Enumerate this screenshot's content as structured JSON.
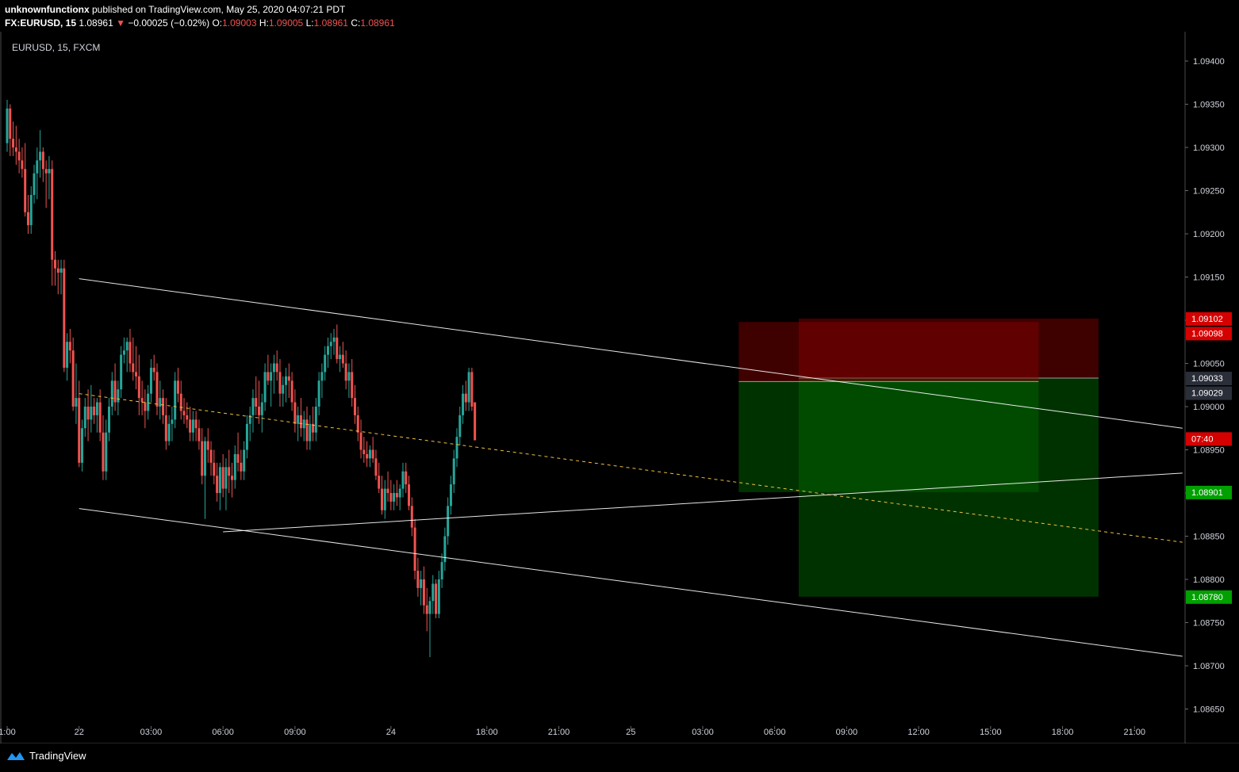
{
  "header": {
    "author": "unknownfunctionx",
    "published_text": "published on TradingView.com, May 25, 2020 04:07:21 PDT",
    "symbol": "FX:EURUSD, 15",
    "last": "1.08961",
    "change": "−0.00025 (−0.02%)",
    "open_label": "O:",
    "open": "1.09003",
    "high_label": "H:",
    "high": "1.09005",
    "low_label": "L:",
    "low": "1.08961",
    "close_label": "C:",
    "close": "1.08961"
  },
  "chart_label": "EURUSD, 15, FXCM",
  "footer": {
    "brand": "TradingView"
  },
  "colors": {
    "up": "#26a69a",
    "down": "#ef5350",
    "bg": "#000000",
    "stop_zone": "#8b0000",
    "target_zone": "#006400",
    "midline": "#f0c040",
    "trendline": "#ffffff"
  },
  "chart_data": {
    "type": "candlestick",
    "title": "EURUSD, 15, FXCM",
    "ylim": [
      1.0864,
      1.0942
    ],
    "y_ticks": [
      "1.09400",
      "1.09350",
      "1.09300",
      "1.09250",
      "1.09200",
      "1.09150",
      "1.09100",
      "1.09050",
      "1.09000",
      "1.08950",
      "1.08900",
      "1.08850",
      "1.08800",
      "1.08750",
      "1.08700",
      "1.08650"
    ],
    "x_ticks": [
      {
        "label": "1:00",
        "idx": 0
      },
      {
        "label": "22",
        "idx": 24
      },
      {
        "label": "03:00",
        "idx": 48
      },
      {
        "label": "06:00",
        "idx": 72
      },
      {
        "label": "09:00",
        "idx": 96
      },
      {
        "label": "24",
        "idx": 128
      },
      {
        "label": "18:00",
        "idx": 160
      },
      {
        "label": "21:00",
        "idx": 184
      },
      {
        "label": "25",
        "idx": 208
      },
      {
        "label": "03:00",
        "idx": 232
      },
      {
        "label": "06:00",
        "idx": 256
      },
      {
        "label": "09:00",
        "idx": 280
      },
      {
        "label": "12:00",
        "idx": 304
      },
      {
        "label": "15:00",
        "idx": 328
      },
      {
        "label": "18:00",
        "idx": 352
      },
      {
        "label": "21:00",
        "idx": 376
      }
    ],
    "price_tags": [
      {
        "label": "1.09102",
        "value": 1.09102,
        "color": "#d50000"
      },
      {
        "label": "1.09098",
        "value": 1.09085,
        "color": "#d50000"
      },
      {
        "label": "1.09033",
        "value": 1.09033,
        "color": "#2a2e39"
      },
      {
        "label": "1.09029",
        "value": 1.09016,
        "color": "#2a2e39"
      },
      {
        "label": "07:40",
        "value": 1.08963,
        "color": "#d50000"
      },
      {
        "label": "1.08901",
        "value": 1.08901,
        "color": "#00a000"
      },
      {
        "label": "1.08780",
        "value": 1.0878,
        "color": "#00a000"
      }
    ],
    "candles": [
      {
        "o": 1.09305,
        "h": 1.09355,
        "l": 1.09295,
        "c": 1.09345
      },
      {
        "o": 1.09345,
        "h": 1.0935,
        "l": 1.0929,
        "c": 1.0931
      },
      {
        "o": 1.0931,
        "h": 1.0933,
        "l": 1.0929,
        "c": 1.093
      },
      {
        "o": 1.093,
        "h": 1.09325,
        "l": 1.0928,
        "c": 1.09295
      },
      {
        "o": 1.09295,
        "h": 1.0931,
        "l": 1.0927,
        "c": 1.09285
      },
      {
        "o": 1.09285,
        "h": 1.093,
        "l": 1.09265,
        "c": 1.09275
      },
      {
        "o": 1.09275,
        "h": 1.09305,
        "l": 1.0922,
        "c": 1.09225
      },
      {
        "o": 1.09225,
        "h": 1.09245,
        "l": 1.092,
        "c": 1.0921
      },
      {
        "o": 1.0921,
        "h": 1.09255,
        "l": 1.092,
        "c": 1.09245
      },
      {
        "o": 1.09245,
        "h": 1.0928,
        "l": 1.09235,
        "c": 1.0927
      },
      {
        "o": 1.0927,
        "h": 1.093,
        "l": 1.0924,
        "c": 1.09285
      },
      {
        "o": 1.09285,
        "h": 1.0932,
        "l": 1.09265,
        "c": 1.09295
      },
      {
        "o": 1.09295,
        "h": 1.093,
        "l": 1.0926,
        "c": 1.09275
      },
      {
        "o": 1.09275,
        "h": 1.09285,
        "l": 1.0923,
        "c": 1.0927
      },
      {
        "o": 1.0927,
        "h": 1.0929,
        "l": 1.0924,
        "c": 1.09275
      },
      {
        "o": 1.09275,
        "h": 1.09285,
        "l": 1.0914,
        "c": 1.0917
      },
      {
        "o": 1.0917,
        "h": 1.0918,
        "l": 1.0914,
        "c": 1.0916
      },
      {
        "o": 1.0916,
        "h": 1.0917,
        "l": 1.0913,
        "c": 1.09155
      },
      {
        "o": 1.09155,
        "h": 1.0917,
        "l": 1.0913,
        "c": 1.0916
      },
      {
        "o": 1.0916,
        "h": 1.0917,
        "l": 1.0904,
        "c": 1.09045
      },
      {
        "o": 1.09045,
        "h": 1.09085,
        "l": 1.0903,
        "c": 1.09075
      },
      {
        "o": 1.09075,
        "h": 1.0909,
        "l": 1.0905,
        "c": 1.09065
      },
      {
        "o": 1.09065,
        "h": 1.0908,
        "l": 1.08995,
        "c": 1.09
      },
      {
        "o": 1.09,
        "h": 1.0905,
        "l": 1.0898,
        "c": 1.0901
      },
      {
        "o": 1.0901,
        "h": 1.0903,
        "l": 1.0893,
        "c": 1.08935
      },
      {
        "o": 1.08935,
        "h": 1.08985,
        "l": 1.08925,
        "c": 1.08975
      },
      {
        "o": 1.08975,
        "h": 1.0901,
        "l": 1.08965,
        "c": 1.09
      },
      {
        "o": 1.09,
        "h": 1.0902,
        "l": 1.0896,
        "c": 1.08985
      },
      {
        "o": 1.08985,
        "h": 1.09025,
        "l": 1.0897,
        "c": 1.09
      },
      {
        "o": 1.09,
        "h": 1.0901,
        "l": 1.0898,
        "c": 1.0899
      },
      {
        "o": 1.0899,
        "h": 1.0901,
        "l": 1.0897,
        "c": 1.09005
      },
      {
        "o": 1.09005,
        "h": 1.0902,
        "l": 1.0896,
        "c": 1.0897
      },
      {
        "o": 1.0897,
        "h": 1.0899,
        "l": 1.08915,
        "c": 1.08925
      },
      {
        "o": 1.08925,
        "h": 1.08985,
        "l": 1.08915,
        "c": 1.0897
      },
      {
        "o": 1.0897,
        "h": 1.0901,
        "l": 1.0896,
        "c": 1.09
      },
      {
        "o": 1.09,
        "h": 1.0904,
        "l": 1.0899,
        "c": 1.0903
      },
      {
        "o": 1.0903,
        "h": 1.0905,
        "l": 1.08995,
        "c": 1.09005
      },
      {
        "o": 1.09005,
        "h": 1.0903,
        "l": 1.0899,
        "c": 1.0902
      },
      {
        "o": 1.0902,
        "h": 1.0907,
        "l": 1.0901,
        "c": 1.0906
      },
      {
        "o": 1.0906,
        "h": 1.0908,
        "l": 1.0905,
        "c": 1.09065
      },
      {
        "o": 1.09065,
        "h": 1.0908,
        "l": 1.0904,
        "c": 1.09075
      },
      {
        "o": 1.09075,
        "h": 1.0909,
        "l": 1.0904,
        "c": 1.0905
      },
      {
        "o": 1.0905,
        "h": 1.0908,
        "l": 1.0903,
        "c": 1.0904
      },
      {
        "o": 1.0904,
        "h": 1.0907,
        "l": 1.0902,
        "c": 1.09035
      },
      {
        "o": 1.09035,
        "h": 1.0906,
        "l": 1.0899,
        "c": 1.0901
      },
      {
        "o": 1.0901,
        "h": 1.0903,
        "l": 1.0899,
        "c": 1.09005
      },
      {
        "o": 1.09005,
        "h": 1.0902,
        "l": 1.08975,
        "c": 1.08995
      },
      {
        "o": 1.08995,
        "h": 1.09025,
        "l": 1.08985,
        "c": 1.09015
      },
      {
        "o": 1.09015,
        "h": 1.09055,
        "l": 1.09005,
        "c": 1.09045
      },
      {
        "o": 1.09045,
        "h": 1.0906,
        "l": 1.0903,
        "c": 1.0904
      },
      {
        "o": 1.0904,
        "h": 1.0905,
        "l": 1.0899,
        "c": 1.09
      },
      {
        "o": 1.09,
        "h": 1.0903,
        "l": 1.08985,
        "c": 1.0901
      },
      {
        "o": 1.0901,
        "h": 1.0902,
        "l": 1.0898,
        "c": 1.0899
      },
      {
        "o": 1.0899,
        "h": 1.0901,
        "l": 1.0895,
        "c": 1.0896
      },
      {
        "o": 1.0896,
        "h": 1.0899,
        "l": 1.08955,
        "c": 1.0898
      },
      {
        "o": 1.0898,
        "h": 1.09,
        "l": 1.0896,
        "c": 1.08985
      },
      {
        "o": 1.08985,
        "h": 1.0904,
        "l": 1.08975,
        "c": 1.0903
      },
      {
        "o": 1.0903,
        "h": 1.09045,
        "l": 1.09005,
        "c": 1.09015
      },
      {
        "o": 1.09015,
        "h": 1.0903,
        "l": 1.08985,
        "c": 1.08995
      },
      {
        "o": 1.08995,
        "h": 1.0901,
        "l": 1.0898,
        "c": 1.0899
      },
      {
        "o": 1.0899,
        "h": 1.09005,
        "l": 1.08975,
        "c": 1.08985
      },
      {
        "o": 1.08985,
        "h": 1.09,
        "l": 1.0896,
        "c": 1.0897
      },
      {
        "o": 1.0897,
        "h": 1.08995,
        "l": 1.0896,
        "c": 1.08985
      },
      {
        "o": 1.08985,
        "h": 1.08995,
        "l": 1.0896,
        "c": 1.08975
      },
      {
        "o": 1.08975,
        "h": 1.08985,
        "l": 1.0895,
        "c": 1.0896
      },
      {
        "o": 1.0896,
        "h": 1.08975,
        "l": 1.0891,
        "c": 1.0892
      },
      {
        "o": 1.0892,
        "h": 1.08965,
        "l": 1.0887,
        "c": 1.0896
      },
      {
        "o": 1.0896,
        "h": 1.08975,
        "l": 1.08935,
        "c": 1.0895
      },
      {
        "o": 1.0895,
        "h": 1.0896,
        "l": 1.0892,
        "c": 1.08935
      },
      {
        "o": 1.08935,
        "h": 1.0895,
        "l": 1.0891,
        "c": 1.0892
      },
      {
        "o": 1.0892,
        "h": 1.08935,
        "l": 1.0889,
        "c": 1.089
      },
      {
        "o": 1.089,
        "h": 1.08935,
        "l": 1.0888,
        "c": 1.0893
      },
      {
        "o": 1.0893,
        "h": 1.08945,
        "l": 1.08895,
        "c": 1.08905
      },
      {
        "o": 1.08905,
        "h": 1.0894,
        "l": 1.0888,
        "c": 1.0893
      },
      {
        "o": 1.0893,
        "h": 1.0895,
        "l": 1.089,
        "c": 1.0892
      },
      {
        "o": 1.0892,
        "h": 1.08935,
        "l": 1.08895,
        "c": 1.08915
      },
      {
        "o": 1.08915,
        "h": 1.08955,
        "l": 1.08905,
        "c": 1.08945
      },
      {
        "o": 1.08945,
        "h": 1.0897,
        "l": 1.08925,
        "c": 1.08935
      },
      {
        "o": 1.08935,
        "h": 1.0895,
        "l": 1.08915,
        "c": 1.08925
      },
      {
        "o": 1.08925,
        "h": 1.0896,
        "l": 1.08915,
        "c": 1.0895
      },
      {
        "o": 1.0895,
        "h": 1.0899,
        "l": 1.0894,
        "c": 1.0898
      },
      {
        "o": 1.0898,
        "h": 1.09,
        "l": 1.0896,
        "c": 1.0899
      },
      {
        "o": 1.0899,
        "h": 1.0902,
        "l": 1.0897,
        "c": 1.0901
      },
      {
        "o": 1.0901,
        "h": 1.09035,
        "l": 1.0899,
        "c": 1.09
      },
      {
        "o": 1.09,
        "h": 1.0903,
        "l": 1.0898,
        "c": 1.0899
      },
      {
        "o": 1.0899,
        "h": 1.09015,
        "l": 1.0897,
        "c": 1.09005
      },
      {
        "o": 1.09005,
        "h": 1.0905,
        "l": 1.08995,
        "c": 1.0904
      },
      {
        "o": 1.0904,
        "h": 1.0906,
        "l": 1.09025,
        "c": 1.0903
      },
      {
        "o": 1.0903,
        "h": 1.0905,
        "l": 1.09,
        "c": 1.0904
      },
      {
        "o": 1.0904,
        "h": 1.0906,
        "l": 1.09015,
        "c": 1.0905
      },
      {
        "o": 1.0905,
        "h": 1.09065,
        "l": 1.0903,
        "c": 1.0904
      },
      {
        "o": 1.0904,
        "h": 1.09055,
        "l": 1.09,
        "c": 1.09015
      },
      {
        "o": 1.09015,
        "h": 1.09035,
        "l": 1.09,
        "c": 1.09025
      },
      {
        "o": 1.09025,
        "h": 1.09045,
        "l": 1.09005,
        "c": 1.09035
      },
      {
        "o": 1.09035,
        "h": 1.0905,
        "l": 1.0901,
        "c": 1.0903
      },
      {
        "o": 1.0903,
        "h": 1.0904,
        "l": 1.08995,
        "c": 1.09005
      },
      {
        "o": 1.09005,
        "h": 1.0902,
        "l": 1.0897,
        "c": 1.0898
      },
      {
        "o": 1.0898,
        "h": 1.09,
        "l": 1.0896,
        "c": 1.0899
      },
      {
        "o": 1.0899,
        "h": 1.0901,
        "l": 1.08965,
        "c": 1.08975
      },
      {
        "o": 1.08975,
        "h": 1.08995,
        "l": 1.0896,
        "c": 1.08985
      },
      {
        "o": 1.08985,
        "h": 1.09,
        "l": 1.0895,
        "c": 1.0896
      },
      {
        "o": 1.0896,
        "h": 1.0899,
        "l": 1.0895,
        "c": 1.0898
      },
      {
        "o": 1.0898,
        "h": 1.09,
        "l": 1.0896,
        "c": 1.0897
      },
      {
        "o": 1.0897,
        "h": 1.0901,
        "l": 1.0896,
        "c": 1.09
      },
      {
        "o": 1.09,
        "h": 1.0904,
        "l": 1.0899,
        "c": 1.0903
      },
      {
        "o": 1.0903,
        "h": 1.0905,
        "l": 1.0901,
        "c": 1.0904
      },
      {
        "o": 1.0904,
        "h": 1.0907,
        "l": 1.0903,
        "c": 1.0906
      },
      {
        "o": 1.0906,
        "h": 1.0908,
        "l": 1.09045,
        "c": 1.0907
      },
      {
        "o": 1.0907,
        "h": 1.09085,
        "l": 1.09055,
        "c": 1.09075
      },
      {
        "o": 1.09075,
        "h": 1.0909,
        "l": 1.0906,
        "c": 1.0908
      },
      {
        "o": 1.0908,
        "h": 1.09095,
        "l": 1.0905,
        "c": 1.09055
      },
      {
        "o": 1.09055,
        "h": 1.0907,
        "l": 1.0904,
        "c": 1.0906
      },
      {
        "o": 1.0906,
        "h": 1.09075,
        "l": 1.09045,
        "c": 1.0905
      },
      {
        "o": 1.0905,
        "h": 1.09065,
        "l": 1.0902,
        "c": 1.0903
      },
      {
        "o": 1.0903,
        "h": 1.0905,
        "l": 1.0901,
        "c": 1.0904
      },
      {
        "o": 1.0904,
        "h": 1.09055,
        "l": 1.09,
        "c": 1.0901
      },
      {
        "o": 1.0901,
        "h": 1.09025,
        "l": 1.0898,
        "c": 1.0899
      },
      {
        "o": 1.0899,
        "h": 1.09,
        "l": 1.0896,
        "c": 1.0897
      },
      {
        "o": 1.0897,
        "h": 1.08985,
        "l": 1.0894,
        "c": 1.0895
      },
      {
        "o": 1.0895,
        "h": 1.08965,
        "l": 1.08935,
        "c": 1.08945
      },
      {
        "o": 1.08945,
        "h": 1.0896,
        "l": 1.0893,
        "c": 1.0894
      },
      {
        "o": 1.0894,
        "h": 1.08955,
        "l": 1.0893,
        "c": 1.0895
      },
      {
        "o": 1.0895,
        "h": 1.08965,
        "l": 1.08935,
        "c": 1.0894
      },
      {
        "o": 1.0894,
        "h": 1.0895,
        "l": 1.08915,
        "c": 1.0892
      },
      {
        "o": 1.0892,
        "h": 1.08935,
        "l": 1.089,
        "c": 1.08905
      },
      {
        "o": 1.08905,
        "h": 1.0892,
        "l": 1.08875,
        "c": 1.0888
      },
      {
        "o": 1.0888,
        "h": 1.08915,
        "l": 1.0887,
        "c": 1.08905
      },
      {
        "o": 1.08905,
        "h": 1.08925,
        "l": 1.0889,
        "c": 1.089
      },
      {
        "o": 1.089,
        "h": 1.08915,
        "l": 1.0888,
        "c": 1.0889
      },
      {
        "o": 1.0889,
        "h": 1.0891,
        "l": 1.0888,
        "c": 1.089
      },
      {
        "o": 1.089,
        "h": 1.08915,
        "l": 1.08885,
        "c": 1.08895
      },
      {
        "o": 1.08895,
        "h": 1.0891,
        "l": 1.0888,
        "c": 1.08905
      },
      {
        "o": 1.08905,
        "h": 1.08935,
        "l": 1.08895,
        "c": 1.08925
      },
      {
        "o": 1.08925,
        "h": 1.08935,
        "l": 1.089,
        "c": 1.0891
      },
      {
        "o": 1.0891,
        "h": 1.0892,
        "l": 1.0888,
        "c": 1.08885
      },
      {
        "o": 1.08885,
        "h": 1.08895,
        "l": 1.0885,
        "c": 1.0886
      },
      {
        "o": 1.0886,
        "h": 1.0887,
        "l": 1.088,
        "c": 1.0881
      },
      {
        "o": 1.0881,
        "h": 1.08825,
        "l": 1.0878,
        "c": 1.0879
      },
      {
        "o": 1.0879,
        "h": 1.0881,
        "l": 1.0877,
        "c": 1.088
      },
      {
        "o": 1.088,
        "h": 1.08815,
        "l": 1.0876,
        "c": 1.0877
      },
      {
        "o": 1.0877,
        "h": 1.0879,
        "l": 1.0874,
        "c": 1.0876
      },
      {
        "o": 1.0876,
        "h": 1.0878,
        "l": 1.0871,
        "c": 1.08775
      },
      {
        "o": 1.08775,
        "h": 1.08805,
        "l": 1.0876,
        "c": 1.08795
      },
      {
        "o": 1.08795,
        "h": 1.088,
        "l": 1.08755,
        "c": 1.0876
      },
      {
        "o": 1.0876,
        "h": 1.0881,
        "l": 1.08755,
        "c": 1.088
      },
      {
        "o": 1.088,
        "h": 1.0883,
        "l": 1.0879,
        "c": 1.0882
      },
      {
        "o": 1.0882,
        "h": 1.0886,
        "l": 1.0881,
        "c": 1.0885
      },
      {
        "o": 1.0885,
        "h": 1.08895,
        "l": 1.0884,
        "c": 1.08885
      },
      {
        "o": 1.08885,
        "h": 1.0892,
        "l": 1.08875,
        "c": 1.0891
      },
      {
        "o": 1.0891,
        "h": 1.0895,
        "l": 1.089,
        "c": 1.0894
      },
      {
        "o": 1.0894,
        "h": 1.08975,
        "l": 1.0893,
        "c": 1.08965
      },
      {
        "o": 1.08965,
        "h": 1.09,
        "l": 1.08955,
        "c": 1.0899
      },
      {
        "o": 1.0899,
        "h": 1.09025,
        "l": 1.0898,
        "c": 1.09015
      },
      {
        "o": 1.09015,
        "h": 1.0903,
        "l": 1.08995,
        "c": 1.09005
      },
      {
        "o": 1.09005,
        "h": 1.09045,
        "l": 1.08995,
        "c": 1.0904
      },
      {
        "o": 1.0904,
        "h": 1.09045,
        "l": 1.08995,
        "c": 1.09
      },
      {
        "o": 1.09005,
        "h": 1.09005,
        "l": 1.08961,
        "c": 1.08961
      }
    ],
    "lines": [
      {
        "name": "channel-upper",
        "x1": 24,
        "y1": 1.09148,
        "x2": 392,
        "y2": 1.08975,
        "style": "solid"
      },
      {
        "name": "channel-midline",
        "x1": 24,
        "y1": 1.09015,
        "x2": 392,
        "y2": 1.08843,
        "style": "dashed"
      },
      {
        "name": "channel-lower",
        "x1": 24,
        "y1": 1.08882,
        "x2": 392,
        "y2": 1.08711,
        "style": "solid"
      },
      {
        "name": "support-trendline",
        "x1": 72,
        "y1": 1.08855,
        "x2": 392,
        "y2": 1.08923,
        "style": "solid"
      }
    ],
    "positions": [
      {
        "name": "position-outer",
        "entry": 1.09033,
        "stop": 1.09102,
        "target": 1.0878,
        "x1": 264,
        "x2": 364
      },
      {
        "name": "position-inner",
        "entry": 1.09029,
        "stop": 1.09098,
        "target": 1.08901,
        "x1": 244,
        "x2": 344
      }
    ]
  }
}
